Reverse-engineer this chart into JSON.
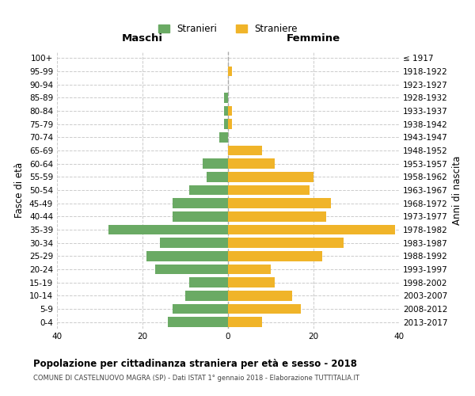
{
  "age_groups": [
    "100+",
    "95-99",
    "90-94",
    "85-89",
    "80-84",
    "75-79",
    "70-74",
    "65-69",
    "60-64",
    "55-59",
    "50-54",
    "45-49",
    "40-44",
    "35-39",
    "30-34",
    "25-29",
    "20-24",
    "15-19",
    "10-14",
    "5-9",
    "0-4"
  ],
  "birth_years": [
    "≤ 1917",
    "1918-1922",
    "1923-1927",
    "1928-1932",
    "1933-1937",
    "1938-1942",
    "1943-1947",
    "1948-1952",
    "1953-1957",
    "1958-1962",
    "1963-1967",
    "1968-1972",
    "1973-1977",
    "1978-1982",
    "1983-1987",
    "1988-1992",
    "1993-1997",
    "1998-2002",
    "2003-2007",
    "2008-2012",
    "2013-2017"
  ],
  "maschi": [
    0,
    0,
    0,
    1,
    1,
    1,
    2,
    0,
    6,
    5,
    9,
    13,
    13,
    28,
    16,
    19,
    17,
    9,
    10,
    13,
    14
  ],
  "femmine": [
    0,
    1,
    0,
    0,
    1,
    1,
    0,
    8,
    11,
    20,
    19,
    24,
    23,
    39,
    27,
    22,
    10,
    11,
    15,
    17,
    8
  ],
  "color_maschi": "#6aaa64",
  "color_femmine": "#f0b429",
  "title": "Popolazione per cittadinanza straniera per età e sesso - 2018",
  "subtitle": "COMUNE DI CASTELNUOVO MAGRA (SP) - Dati ISTAT 1° gennaio 2018 - Elaborazione TUTTITALIA.IT",
  "ylabel_left": "Fasce di età",
  "ylabel_right": "Anni di nascita",
  "xlabel_left": "Maschi",
  "xlabel_right": "Femmine",
  "legend_maschi": "Stranieri",
  "legend_femmine": "Straniere",
  "xlim": 40,
  "background_color": "#ffffff",
  "grid_color": "#cccccc"
}
